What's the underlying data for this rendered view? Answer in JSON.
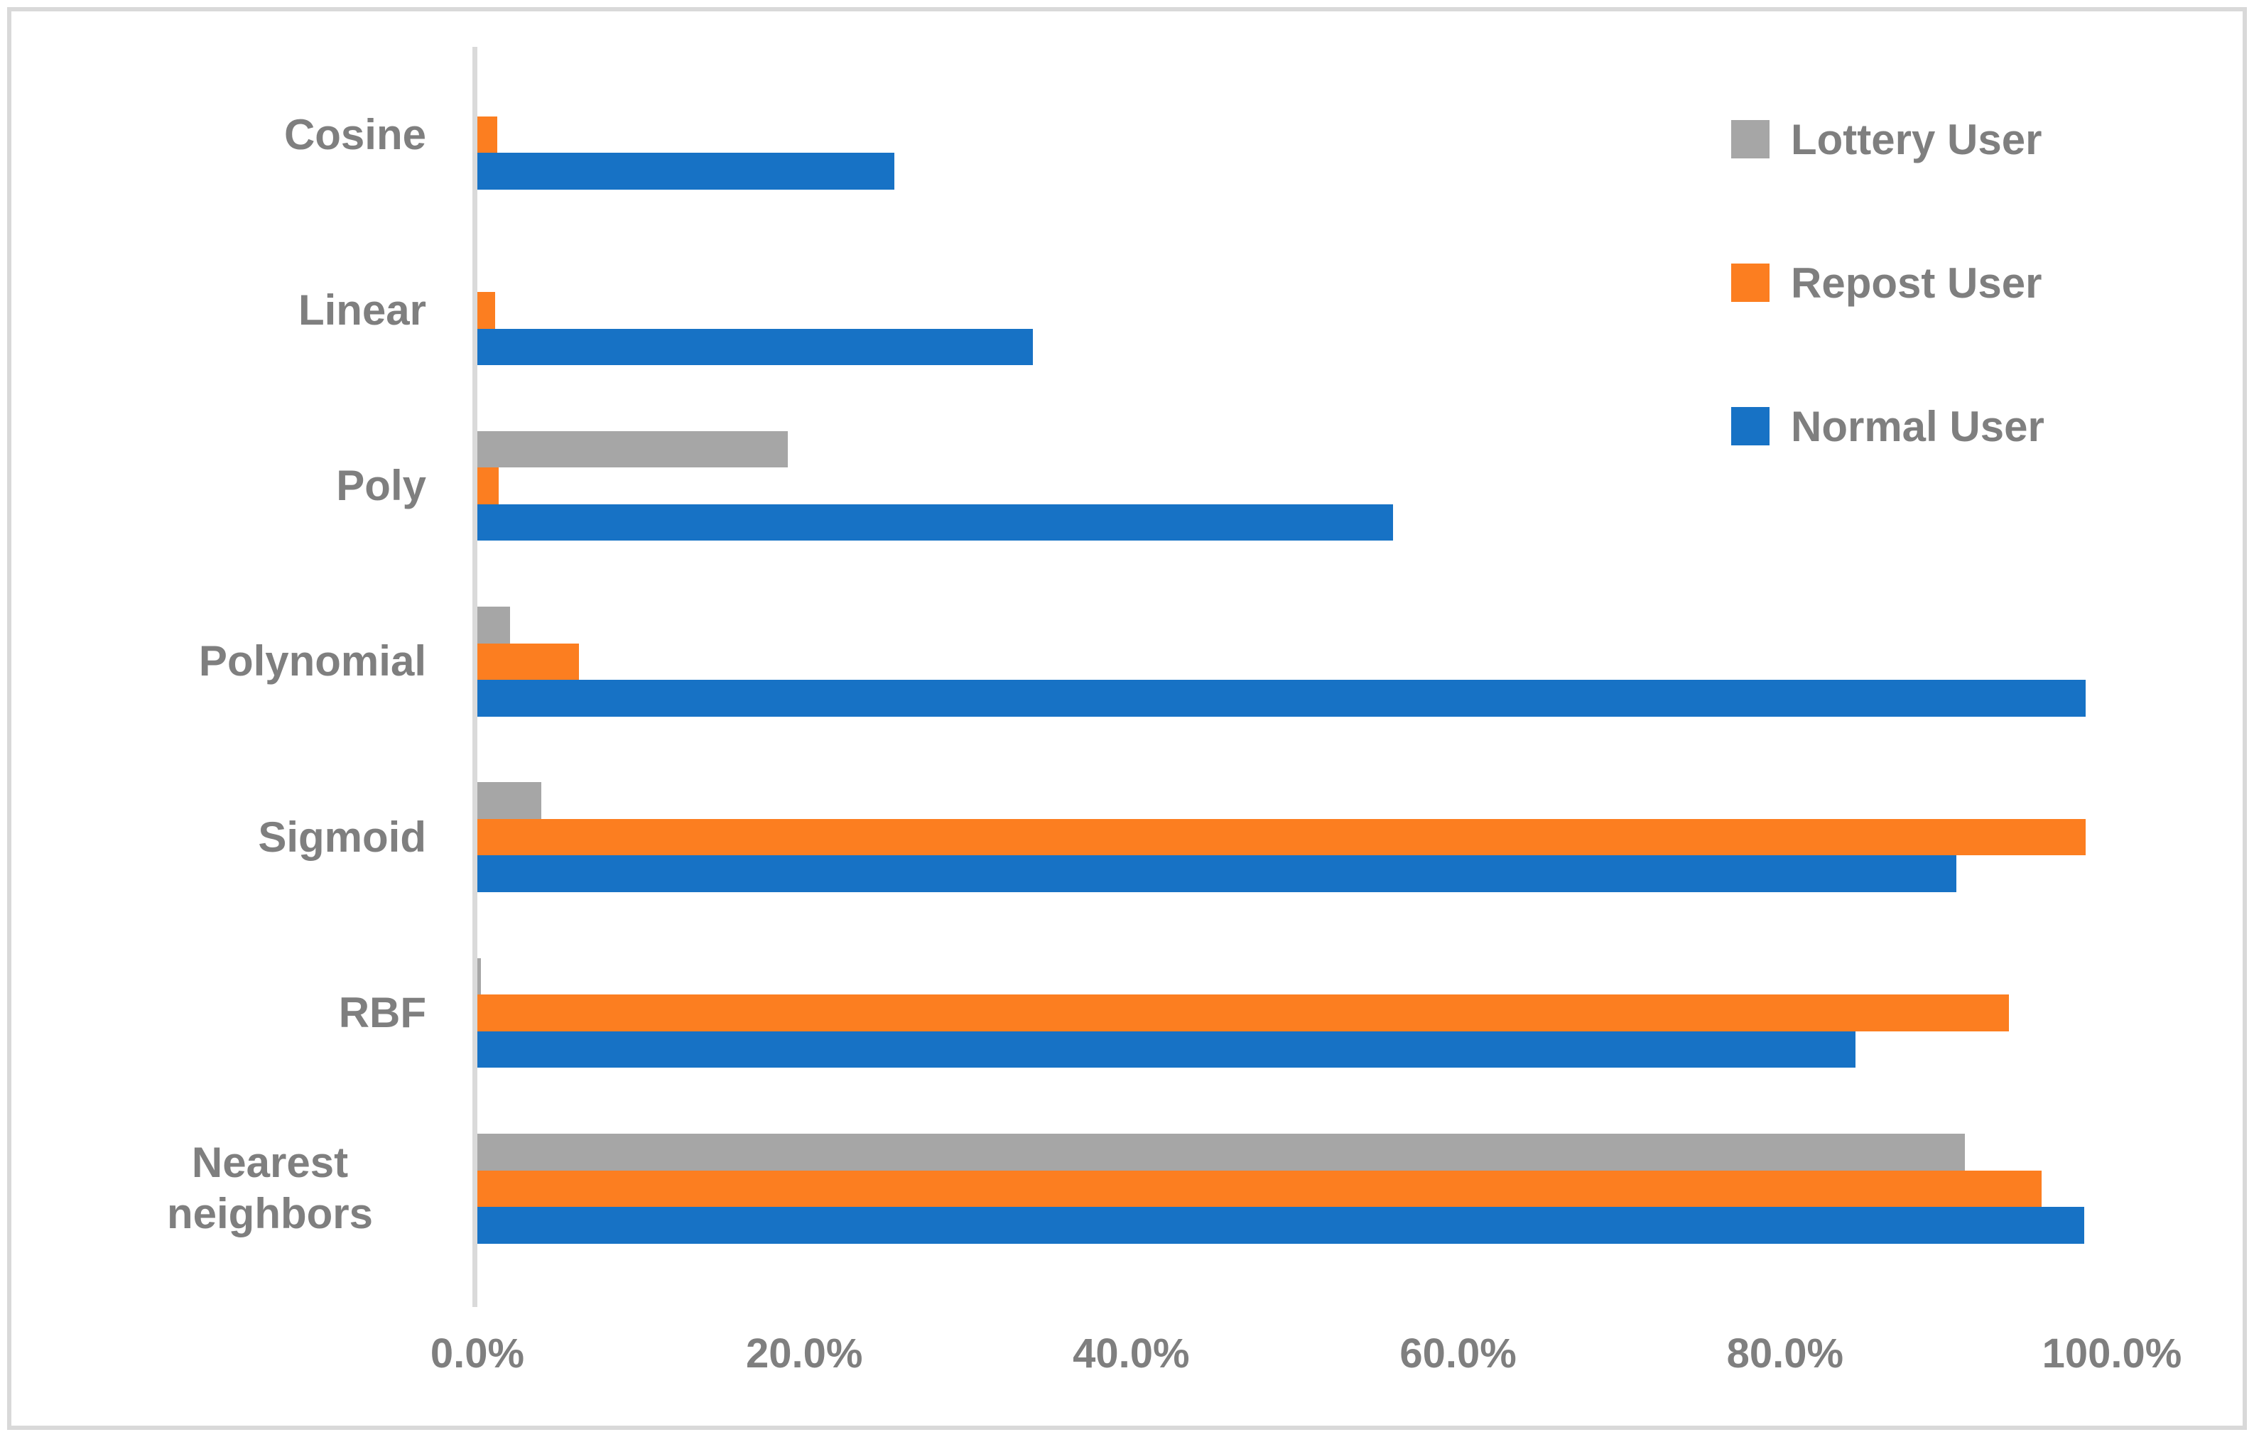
{
  "chart_data": {
    "type": "bar",
    "orientation": "horizontal",
    "title": "",
    "categories": [
      "Cosine",
      "Linear",
      "Poly",
      "Polynomial",
      "Sigmoid",
      "RBF",
      "Nearest neighbors"
    ],
    "series": [
      {
        "name": "Lottery User",
        "color": "#A6A6A6",
        "values": [
          0,
          0,
          19.0,
          2.0,
          3.9,
          0.2,
          91.0
        ]
      },
      {
        "name": "Repost User",
        "color": "#FC7E20",
        "values": [
          1.2,
          1.1,
          1.3,
          6.2,
          98.4,
          93.7,
          95.7
        ]
      },
      {
        "name": "Normal User",
        "color": "#1772C5",
        "values": [
          25.5,
          34.0,
          56.0,
          98.4,
          90.5,
          84.3,
          98.3
        ]
      }
    ],
    "x_axis": {
      "min": 0,
      "max": 100,
      "tick_step": 20,
      "ticks": [
        "0.0%",
        "20.0%",
        "40.0%",
        "60.0%",
        "80.0%",
        "100.0%"
      ],
      "unit": "percent"
    },
    "legend_position": "top-right",
    "legend_order": [
      "Lottery User",
      "Repost User",
      "Normal User"
    ],
    "grid": false,
    "bar_order_top_to_bottom": [
      "Lottery User",
      "Repost User",
      "Normal User"
    ]
  },
  "colors": {
    "axis_line": "#DADADA",
    "frame_border": "#D9D9D9",
    "label_text": "#7F7F7F",
    "background": "#FFFFFF"
  }
}
